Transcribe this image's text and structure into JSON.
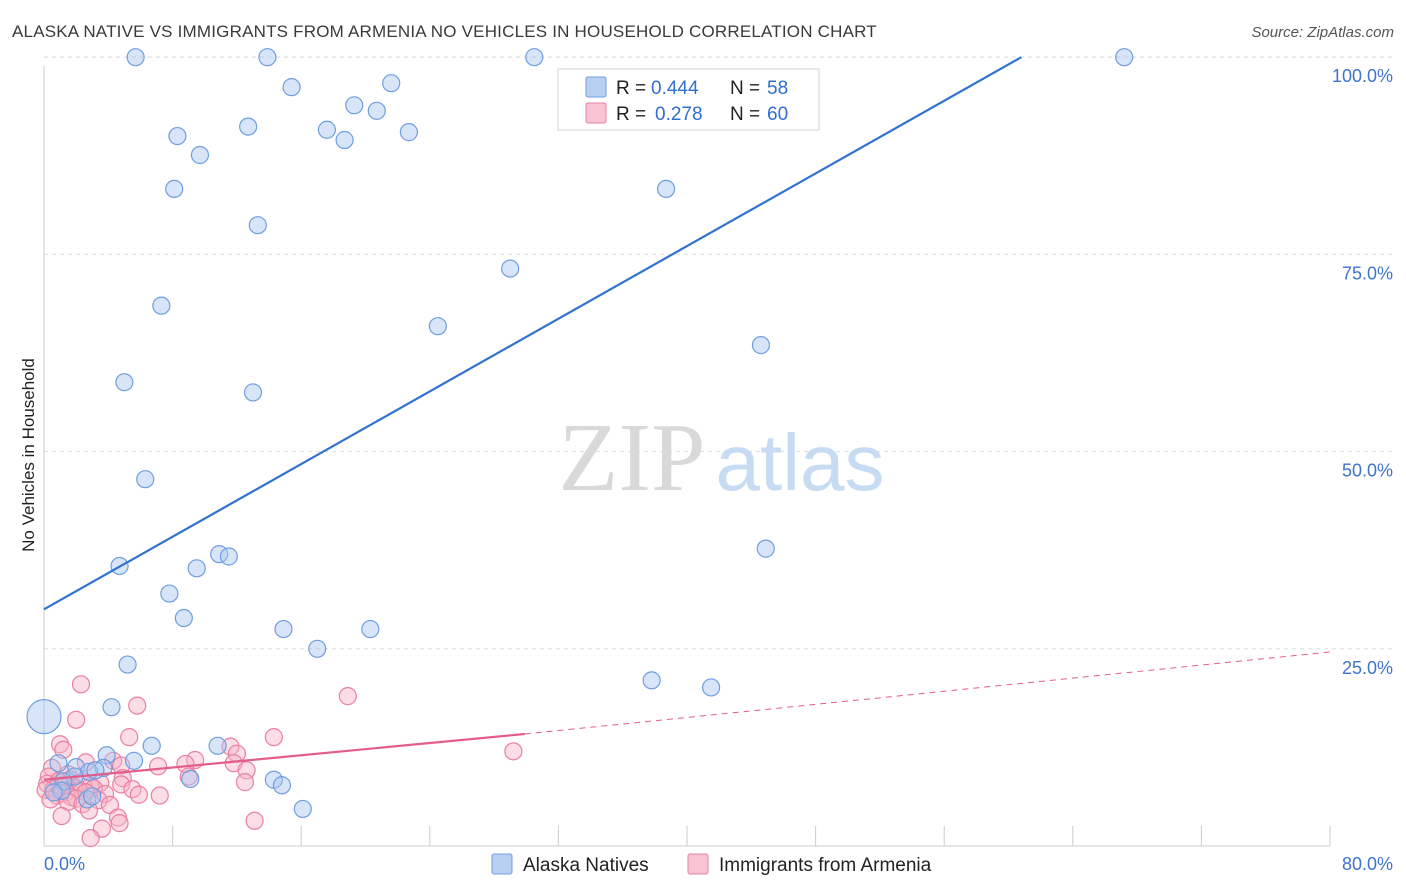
{
  "title": "ALASKA NATIVE VS IMMIGRANTS FROM ARMENIA NO VEHICLES IN HOUSEHOLD CORRELATION CHART",
  "source": "Source: ZipAtlas.com",
  "watermark": {
    "zip": "ZIP",
    "atlas": "atlas"
  },
  "legend_top": [
    {
      "r_label": "R =",
      "r_value": "0.444",
      "n_label": "N =",
      "n_value": "58"
    },
    {
      "r_label": "R =",
      "r_value": "0.278",
      "n_label": "N =",
      "n_value": "60"
    }
  ],
  "colors": {
    "blue_fill": "#a9c6f0",
    "blue_stroke": "#6f9ee0",
    "blue_line": "#2f72d0",
    "pink_fill": "#f6b4c8",
    "pink_stroke": "#ea7fa0",
    "pink_line": "#e35d8c",
    "grid": "#dddddd",
    "tick_text": "#3f74c9"
  },
  "chart_data": {
    "type": "scatter",
    "title": "ALASKA NATIVE VS IMMIGRANTS FROM ARMENIA NO VEHICLES IN HOUSEHOLD CORRELATION CHART",
    "xlabel": "",
    "ylabel": "No Vehicles in Household",
    "xlim": [
      0,
      80
    ],
    "ylim": [
      0,
      102
    ],
    "x_tick_labels": [
      {
        "value": 0,
        "label": "0.0%"
      },
      {
        "value": 80,
        "label": "80.0%"
      }
    ],
    "y_tick_labels": [
      {
        "value": 25,
        "label": "25.0%"
      },
      {
        "value": 50,
        "label": "50.0%"
      },
      {
        "value": 75,
        "label": "75.0%"
      },
      {
        "value": 100,
        "label": "100.0%"
      }
    ],
    "x_minor_ticks": [
      8,
      16,
      24,
      32,
      40,
      48,
      56,
      64,
      72,
      80
    ],
    "series": [
      {
        "name": "Alaska Natives",
        "r": 0.444,
        "n": 58,
        "trend": {
          "x": [
            0,
            60.8
          ],
          "y": [
            30.0,
            100.0
          ],
          "dashed_to": null
        },
        "points": [
          [
            5.7,
            100.0
          ],
          [
            13.9,
            100.0
          ],
          [
            30.5,
            100.0
          ],
          [
            67.2,
            100.0
          ],
          [
            15.4,
            96.2
          ],
          [
            21.6,
            96.7
          ],
          [
            19.3,
            93.9
          ],
          [
            20.7,
            93.2
          ],
          [
            12.7,
            91.2
          ],
          [
            17.6,
            90.8
          ],
          [
            22.7,
            90.5
          ],
          [
            8.3,
            90.0
          ],
          [
            18.7,
            89.5
          ],
          [
            9.7,
            87.6
          ],
          [
            8.1,
            83.3
          ],
          [
            38.7,
            83.3
          ],
          [
            13.3,
            78.7
          ],
          [
            29.0,
            73.2
          ],
          [
            7.3,
            68.5
          ],
          [
            24.5,
            65.9
          ],
          [
            44.6,
            63.5
          ],
          [
            5.0,
            58.8
          ],
          [
            13.0,
            57.5
          ],
          [
            6.3,
            46.5
          ],
          [
            44.9,
            37.7
          ],
          [
            10.9,
            37.0
          ],
          [
            11.5,
            36.7
          ],
          [
            4.7,
            35.5
          ],
          [
            9.5,
            35.2
          ],
          [
            7.8,
            32.0
          ],
          [
            8.7,
            28.9
          ],
          [
            14.9,
            27.5
          ],
          [
            20.3,
            27.5
          ],
          [
            17.0,
            25.0
          ],
          [
            5.2,
            23.0
          ],
          [
            37.8,
            21.0
          ],
          [
            41.5,
            20.1
          ],
          [
            0.0,
            16.4
          ],
          [
            4.2,
            17.6
          ],
          [
            6.7,
            12.7
          ],
          [
            10.8,
            12.7
          ],
          [
            3.9,
            11.5
          ],
          [
            5.6,
            10.8
          ],
          [
            0.9,
            10.5
          ],
          [
            3.7,
            9.9
          ],
          [
            2.0,
            10.0
          ],
          [
            2.8,
            9.4
          ],
          [
            3.2,
            9.6
          ],
          [
            1.9,
            8.8
          ],
          [
            9.1,
            8.5
          ],
          [
            14.3,
            8.4
          ],
          [
            1.2,
            8.2
          ],
          [
            14.8,
            7.7
          ],
          [
            1.1,
            7.0
          ],
          [
            0.6,
            6.8
          ],
          [
            2.7,
            5.9
          ],
          [
            3.0,
            6.3
          ],
          [
            16.1,
            4.7
          ]
        ]
      },
      {
        "name": "Immigrants from Armenia",
        "r": 0.278,
        "n": 60,
        "trend": {
          "x": [
            0,
            29.9
          ],
          "y": [
            8.4,
            14.2
          ],
          "dashed_to": [
            80,
            24.6
          ]
        },
        "points": [
          [
            2.3,
            20.5
          ],
          [
            18.9,
            19.0
          ],
          [
            5.8,
            17.8
          ],
          [
            2.0,
            16.0
          ],
          [
            5.3,
            13.8
          ],
          [
            14.3,
            13.8
          ],
          [
            1.0,
            12.9
          ],
          [
            11.6,
            12.6
          ],
          [
            1.2,
            12.2
          ],
          [
            29.2,
            12.0
          ],
          [
            12.0,
            11.7
          ],
          [
            9.4,
            10.9
          ],
          [
            11.8,
            10.5
          ],
          [
            4.3,
            10.8
          ],
          [
            2.6,
            10.6
          ],
          [
            8.8,
            10.4
          ],
          [
            4.8,
            10.2
          ],
          [
            7.1,
            10.1
          ],
          [
            0.5,
            9.9
          ],
          [
            12.6,
            9.6
          ],
          [
            1.5,
            9.1
          ],
          [
            9.0,
            8.8
          ],
          [
            4.9,
            8.6
          ],
          [
            0.3,
            8.8
          ],
          [
            1.6,
            8.4
          ],
          [
            2.4,
            8.2
          ],
          [
            0.9,
            8.2
          ],
          [
            3.5,
            8.0
          ],
          [
            0.2,
            7.9
          ],
          [
            4.8,
            7.8
          ],
          [
            1.3,
            7.7
          ],
          [
            12.5,
            8.1
          ],
          [
            2.9,
            7.6
          ],
          [
            1.9,
            7.4
          ],
          [
            3.1,
            7.3
          ],
          [
            0.6,
            7.2
          ],
          [
            5.5,
            7.2
          ],
          [
            0.1,
            7.1
          ],
          [
            2.2,
            7.0
          ],
          [
            2.6,
            6.8
          ],
          [
            1.4,
            6.8
          ],
          [
            1.0,
            6.7
          ],
          [
            3.8,
            6.6
          ],
          [
            5.9,
            6.5
          ],
          [
            7.2,
            6.4
          ],
          [
            0.8,
            6.4
          ],
          [
            1.7,
            6.2
          ],
          [
            2.0,
            6.0
          ],
          [
            0.4,
            5.9
          ],
          [
            3.4,
            5.8
          ],
          [
            1.5,
            5.6
          ],
          [
            2.4,
            5.3
          ],
          [
            4.1,
            5.2
          ],
          [
            2.8,
            4.5
          ],
          [
            1.1,
            3.8
          ],
          [
            4.6,
            3.6
          ],
          [
            13.1,
            3.2
          ],
          [
            4.7,
            2.9
          ],
          [
            3.6,
            2.2
          ],
          [
            2.9,
            1.0
          ]
        ]
      }
    ]
  }
}
